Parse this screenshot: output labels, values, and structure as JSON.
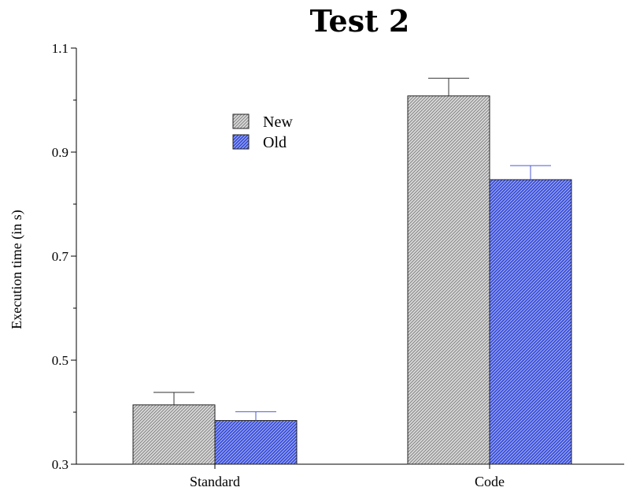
{
  "chart_data": {
    "type": "bar",
    "title": "Test 2",
    "xlabel": "",
    "ylabel": "Execution time (in s)",
    "categories": [
      "Standard",
      "Code"
    ],
    "ylim": [
      0.3,
      1.1
    ],
    "yticks": [
      "0.3",
      "0.5",
      "0.7",
      "0.9",
      "1.1"
    ],
    "grid": false,
    "legend_position": "upper-left",
    "series": [
      {
        "name": "New",
        "values": [
          0.414,
          1.008
        ],
        "errors": [
          0.024,
          0.034
        ],
        "fill": "#d9d9d9",
        "hatch": "#7a7a7a",
        "error_color": "#333333"
      },
      {
        "name": "Old",
        "values": [
          0.384,
          0.847
        ],
        "errors": [
          0.017,
          0.027
        ],
        "fill": "#3a4fd8",
        "hatch": "#b8c0f5",
        "error_color": "#4b5ad6"
      }
    ]
  }
}
